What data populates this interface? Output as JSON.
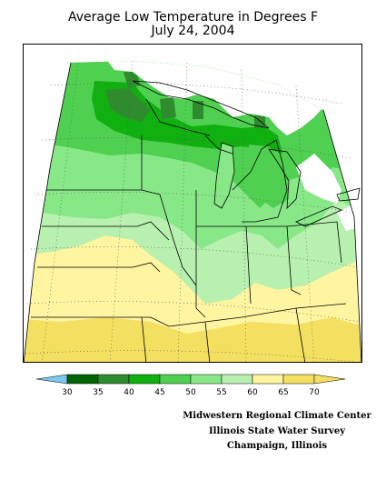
{
  "title": {
    "line1": "Average Low Temperature in Degrees F",
    "line2": "July 24, 2004"
  },
  "legend": {
    "ticks": [
      "30",
      "35",
      "40",
      "45",
      "50",
      "55",
      "60",
      "65",
      "70"
    ],
    "colors": [
      "#7ec8f0",
      "#006400",
      "#2e8b2e",
      "#10b010",
      "#50d050",
      "#88e888",
      "#b8f0b0",
      "#fff4a0",
      "#f4e060",
      "#f4e060"
    ]
  },
  "credits": {
    "line1": "Midwestern Regional Climate Center",
    "line2": "Illinois State Water Survey",
    "line3": "Champaign, Illinois"
  }
}
